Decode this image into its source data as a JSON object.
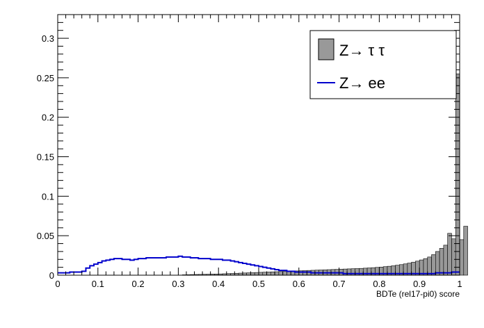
{
  "chart_data": {
    "type": "histogram",
    "title": "",
    "xlabel": "BDTe (rel17-pi0) score",
    "ylabel": "",
    "xlim": [
      0,
      1
    ],
    "ylim": [
      0,
      0.33
    ],
    "bin_width": 0.01,
    "x_ticks": [
      0,
      0.1,
      0.2,
      0.3,
      0.4,
      0.5,
      0.6,
      0.7,
      0.8,
      0.9,
      1
    ],
    "x_tick_labels": [
      "0",
      "0.1",
      "0.2",
      "0.3",
      "0.4",
      "0.5",
      "0.6",
      "0.7",
      "0.8",
      "0.9",
      "1"
    ],
    "y_ticks": [
      0,
      0.05,
      0.1,
      0.15,
      0.2,
      0.25,
      0.3
    ],
    "y_tick_labels": [
      "0",
      "0.05",
      "0.1",
      "0.15",
      "0.2",
      "0.25",
      "0.3"
    ],
    "grid": false,
    "legend_position": "top-right",
    "series": [
      {
        "name": "Z→ τ τ",
        "style": "filled",
        "fill_color": "#999999",
        "line_color": "#000000",
        "values": [
          0,
          0,
          0,
          0,
          0,
          0,
          0,
          0,
          0,
          0,
          0,
          0,
          0,
          0,
          0,
          0,
          0,
          0,
          0,
          0,
          0,
          0,
          0,
          0,
          0,
          0,
          0,
          0,
          0,
          0,
          0,
          0.0005,
          0.0006,
          0.0008,
          0.0009,
          0.001,
          0.0011,
          0.0012,
          0.0014,
          0.0015,
          0.0016,
          0.0018,
          0.002,
          0.0022,
          0.0024,
          0.0026,
          0.0028,
          0.003,
          0.0032,
          0.0034,
          0.0036,
          0.0038,
          0.004,
          0.0042,
          0.0044,
          0.0046,
          0.0048,
          0.005,
          0.0052,
          0.0054,
          0.0056,
          0.0058,
          0.006,
          0.0062,
          0.0064,
          0.0066,
          0.0068,
          0.007,
          0.0072,
          0.0074,
          0.0076,
          0.0078,
          0.008,
          0.0082,
          0.0084,
          0.0086,
          0.0089,
          0.0092,
          0.0095,
          0.0099,
          0.0103,
          0.0108,
          0.0113,
          0.0119,
          0.0126,
          0.0134,
          0.0143,
          0.0153,
          0.0165,
          0.0178,
          0.0193,
          0.021,
          0.023,
          0.026,
          0.03,
          0.034,
          0.038,
          0.053,
          0.046,
          0.255,
          0.045,
          0.062
        ]
      },
      {
        "name": "Z→ ee",
        "style": "line",
        "line_color": "#0000cc",
        "values": [
          0.003,
          0.003,
          0.003,
          0.004,
          0.004,
          0.004,
          0.005,
          0.009,
          0.012,
          0.014,
          0.016,
          0.018,
          0.019,
          0.02,
          0.021,
          0.021,
          0.02,
          0.02,
          0.019,
          0.02,
          0.021,
          0.021,
          0.022,
          0.022,
          0.022,
          0.022,
          0.022,
          0.023,
          0.023,
          0.023,
          0.024,
          0.023,
          0.023,
          0.022,
          0.022,
          0.021,
          0.021,
          0.021,
          0.02,
          0.02,
          0.02,
          0.019,
          0.019,
          0.018,
          0.017,
          0.016,
          0.015,
          0.014,
          0.013,
          0.012,
          0.011,
          0.01,
          0.009,
          0.008,
          0.007,
          0.006,
          0.006,
          0.005,
          0.005,
          0.004,
          0.004,
          0.004,
          0.004,
          0.003,
          0.003,
          0.003,
          0.003,
          0.003,
          0.003,
          0.003,
          0.003,
          0.002,
          0.002,
          0.002,
          0.002,
          0.002,
          0.002,
          0.002,
          0.002,
          0.002,
          0.002,
          0.002,
          0.002,
          0.002,
          0.002,
          0.002,
          0.002,
          0.002,
          0.002,
          0.002,
          0.002,
          0.002,
          0.002,
          0.002,
          0.003,
          0.003,
          0.003,
          0.003,
          0.004,
          0.004
        ]
      }
    ]
  }
}
